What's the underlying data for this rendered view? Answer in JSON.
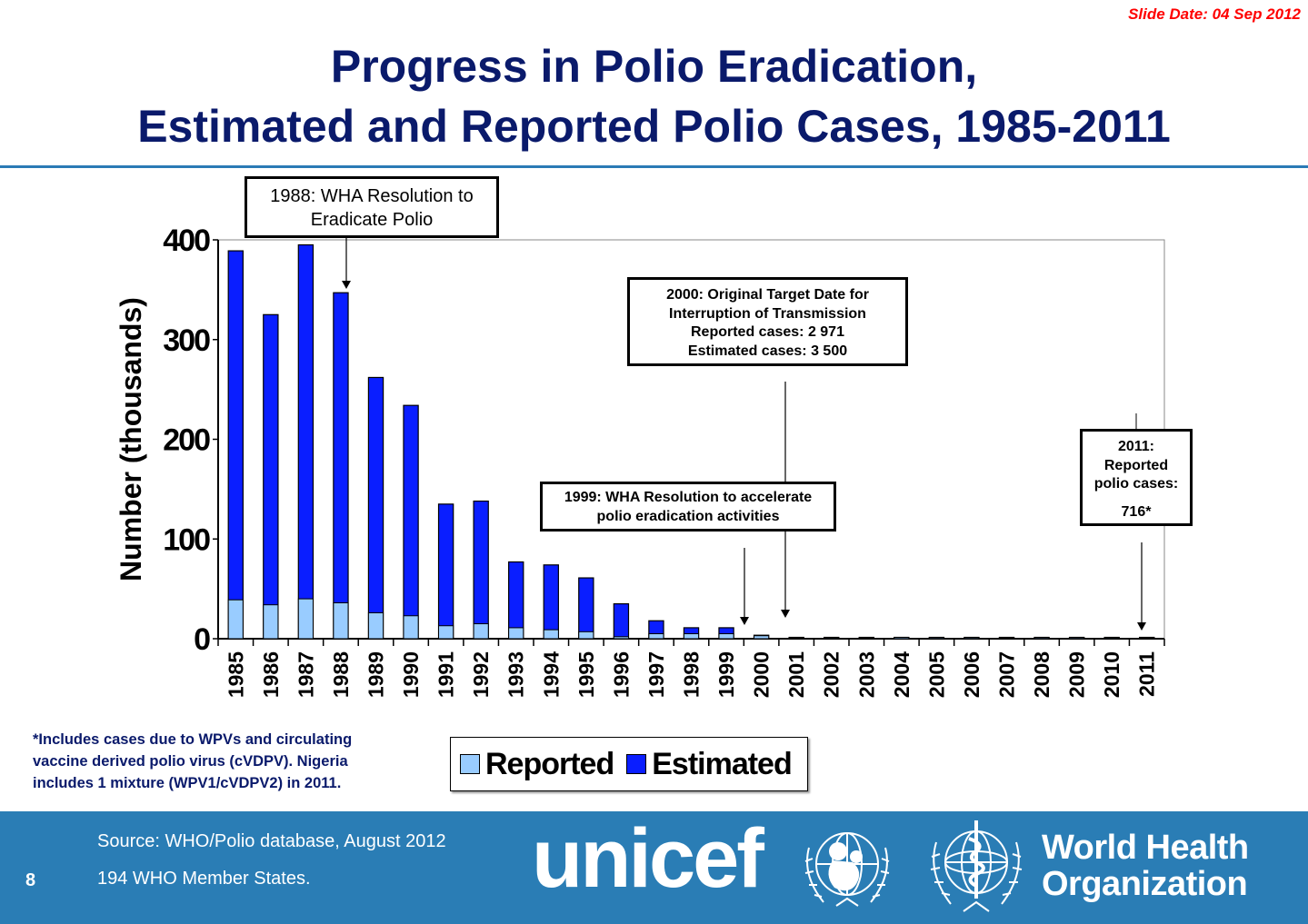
{
  "slide_date": "Slide Date: 04 Sep 2012",
  "title_line1": "Progress in Polio Eradication,",
  "title_line2": "Estimated and Reported Polio Cases, 1985-2011",
  "annotations": {
    "a1988_line1": "1988: WHA Resolution to",
    "a1988_line2": "Eradicate Polio",
    "a2000_line1": "2000: Original Target Date for",
    "a2000_line2": "Interruption of Transmission",
    "a2000_line3": "Reported cases:   2 971",
    "a2000_line4": "Estimated cases: 3 500",
    "a1999_line1": "1999: WHA Resolution to accelerate",
    "a1999_line2": "polio eradication activities",
    "a2011_line1": "2011:",
    "a2011_line2": "Reported",
    "a2011_line3": "polio cases:",
    "a2011_line4": "716*"
  },
  "footnote_line1": "*Includes cases due to WPVs and circulating",
  "footnote_line2": "vaccine derived polio virus (cVDPV). Nigeria",
  "footnote_line3": "includes 1 mixture (WPV1/cVDPV2) in 2011.",
  "footer": {
    "source": "Source: WHO/Polio database, August 2012",
    "members": "194 WHO Member States.",
    "page_number": "8",
    "unicef_logo_text": "unicef",
    "who_logo_line1": "World Health",
    "who_logo_line2": "Organization"
  },
  "colors": {
    "reported": "#99ccff",
    "estimated": "#0a1eff",
    "title": "#0a1a6b",
    "footer_bg": "#2a7db5"
  },
  "chart_data": {
    "type": "bar",
    "stacked": "overlay",
    "title": "Progress in Polio Eradication, Estimated and Reported Polio Cases, 1985-2011",
    "xlabel": "",
    "ylabel": "Number (thousands)",
    "ylim": [
      0,
      400
    ],
    "yticks": [
      0,
      100,
      200,
      300,
      400
    ],
    "grid": false,
    "legend_position": "bottom",
    "categories": [
      "1985",
      "1986",
      "1987",
      "1988",
      "1989",
      "1990",
      "1991",
      "1992",
      "1993",
      "1994",
      "1995",
      "1996",
      "1997",
      "1998",
      "1999",
      "2000",
      "2001",
      "2002",
      "2003",
      "2004",
      "2005",
      "2006",
      "2007",
      "2008",
      "2009",
      "2010",
      "2011"
    ],
    "series": [
      {
        "name": "Estimated",
        "values": [
          389,
          325,
          395,
          347,
          262,
          234,
          135,
          138,
          77,
          74,
          61,
          35,
          18,
          11,
          11,
          3.5,
          0.5,
          1.0,
          0.9,
          1.3,
          1.1,
          1.1,
          0.9,
          1.1,
          1.1,
          1.0,
          0.7
        ]
      },
      {
        "name": "Reported",
        "values": [
          39,
          34,
          40,
          36,
          26,
          23,
          13,
          15,
          11,
          9,
          7,
          2,
          5,
          5,
          5,
          2.971,
          0.5,
          1.0,
          0.9,
          1.3,
          1.1,
          1.1,
          0.9,
          1.1,
          1.1,
          1.0,
          0.716
        ]
      }
    ]
  }
}
